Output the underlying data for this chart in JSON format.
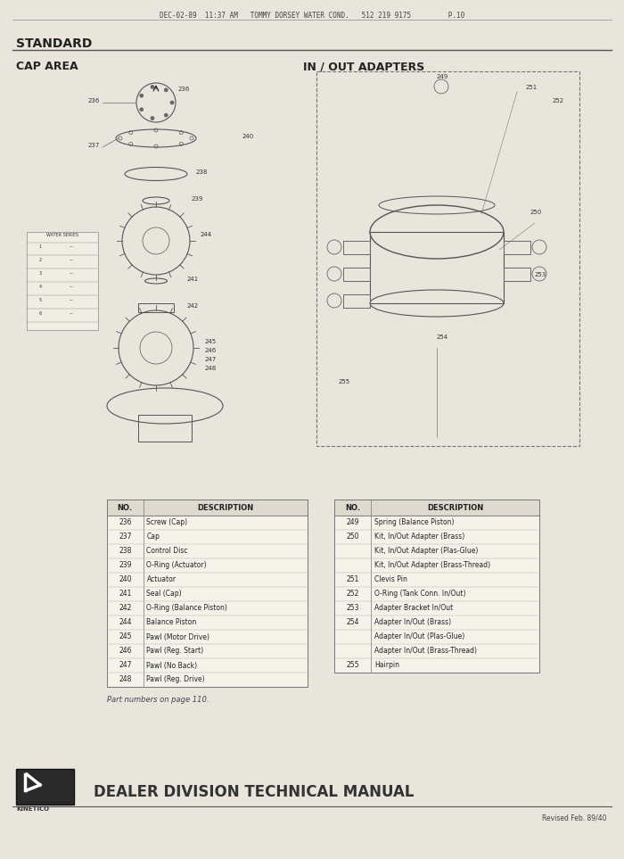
{
  "bg_color": "#d8d5cc",
  "page_bg": "#e8e5dc",
  "fax_header": "DEC-02-89  11:37 AM   TOMMY DORSEY WATER COND.   512 219 9175         P.10",
  "title_standard": "STANDARD",
  "section_cap": "CAP AREA",
  "section_inout": "IN / OUT ADAPTERS",
  "footer_text": "DEALER DIVISION TECHNICAL MANUAL",
  "footer_revised": "Revised Feb. 89/40",
  "part_note": "Part numbers on page 110.",
  "left_table_headers": [
    "NO.",
    "DESCRIPTION"
  ],
  "left_table_rows": [
    [
      "236",
      "Screw (Cap)"
    ],
    [
      "237",
      "Cap"
    ],
    [
      "238",
      "Control Disc"
    ],
    [
      "239",
      "O-Ring (Actuator)"
    ],
    [
      "240",
      "Actuator"
    ],
    [
      "241",
      "Seal (Cap)"
    ],
    [
      "242",
      "O-Ring (Balance Piston)"
    ],
    [
      "244",
      "Balance Piston"
    ],
    [
      "245",
      "Pawl (Motor Drive)"
    ],
    [
      "246",
      "Pawl (Reg. Start)"
    ],
    [
      "247",
      "Pawl (No Back)"
    ],
    [
      "248",
      "Pawl (Reg. Drive)"
    ]
  ],
  "right_table_headers": [
    "NO.",
    "DESCRIPTION"
  ],
  "right_table_rows": [
    [
      "249",
      "Spring (Balance Piston)"
    ],
    [
      "250",
      "Kit, In/Out Adapter (Brass)"
    ],
    [
      "",
      "Kit, In/Out Adapter (Plas-Glue)"
    ],
    [
      "",
      "Kit, In/Out Adapter (Brass-Thread)"
    ],
    [
      "251",
      "Clevis Pin"
    ],
    [
      "252",
      "O-Ring (Tank Conn. In/Out)"
    ],
    [
      "253",
      "Adapter Bracket In/Out"
    ],
    [
      "254",
      "Adapter In/Out (Brass)"
    ],
    [
      "",
      "Adapter In/Out (Plas-Glue)"
    ],
    [
      "",
      "Adapter In/Out (Brass-Thread)"
    ],
    [
      "255",
      "Hairpin"
    ]
  ]
}
